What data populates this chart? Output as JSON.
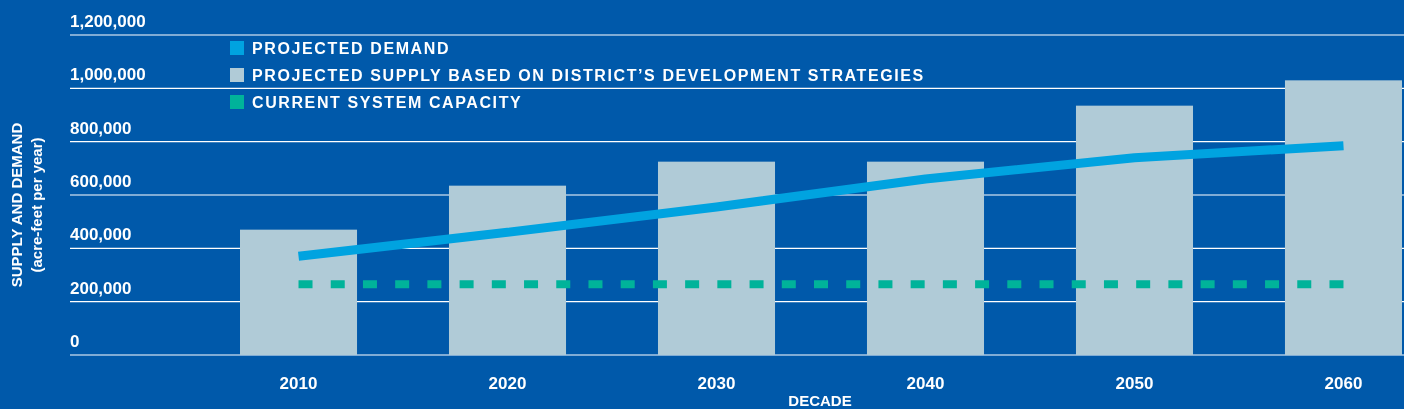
{
  "chart_data": {
    "type": "bar",
    "xlabel": "DECADE",
    "ylabel": "SUPPLY AND DEMAND",
    "subtitle": "(acre-feet per year)",
    "categories": [
      "2010",
      "2020",
      "2030",
      "2040",
      "2050",
      "2060"
    ],
    "series": [
      {
        "name": "PROJECTED DEMAND",
        "type": "line",
        "color": "#00a3e0",
        "values": [
          370000,
          460000,
          555000,
          660000,
          740000,
          785000
        ]
      },
      {
        "name": "PROJECTED SUPPLY BASED ON DISTRICT’S DEVELOPMENT STRATEGIES",
        "color": "#b0cbd7",
        "values": [
          470000,
          635000,
          725000,
          725000,
          935000,
          1030000
        ]
      },
      {
        "name": "CURRENT SYSTEM CAPACITY",
        "type": "line",
        "line_style": "dashed",
        "color": "#00b39a",
        "values": [
          265000,
          265000,
          265000,
          265000,
          265000,
          265000
        ]
      }
    ],
    "ylim": [
      0,
      1200000
    ],
    "yticks": [
      {
        "value": 0,
        "label": "0"
      },
      {
        "value": 200000,
        "label": "200,000"
      },
      {
        "value": 400000,
        "label": "400,000"
      },
      {
        "value": 600000,
        "label": "600,000"
      },
      {
        "value": 800000,
        "label": "800,000"
      },
      {
        "value": 1000000,
        "label": "1,000,000"
      },
      {
        "value": 1200000,
        "label": "1,200,000"
      }
    ],
    "grid": "y",
    "legend": "top left"
  }
}
